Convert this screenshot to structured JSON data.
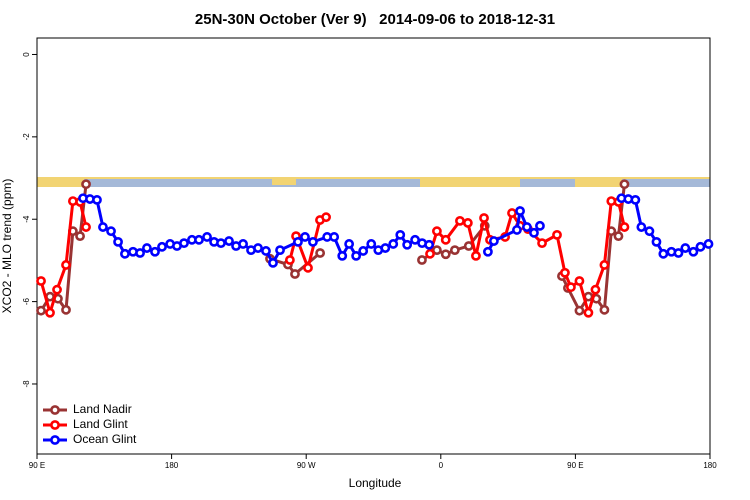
{
  "chart_data": {
    "type": "line",
    "title": "25N-30N October (Ver 9)   2014-09-06 to 2018-12-31",
    "x_label": "Longitude",
    "y_label": "XCO2 - MLO trend (ppm)",
    "xlim": [
      90,
      540
    ],
    "xticks": [
      {
        "value": 90,
        "label": "90 E"
      },
      180,
      {
        "value": 270,
        "label": "90 W"
      },
      {
        "value": 360,
        "label": "0"
      },
      {
        "value": 450,
        "label": "90 E"
      },
      {
        "value": 540,
        "label": "180"
      }
    ],
    "ylim": [
      -9.7,
      0.4
    ],
    "yticks": [
      0,
      -2,
      -4,
      -6,
      -8
    ],
    "legend": "bottom-left",
    "series": [
      {
        "name": "Land Nadir",
        "color": "#993333",
        "x": [
          92.7,
          98.7,
          104,
          109.4,
          114,
          118.8,
          122.8,
          245.8,
          257.8,
          262.5,
          279.3,
          347.4,
          357.4,
          363.3,
          369.4,
          378.7,
          389.4,
          441,
          445,
          452.7,
          458.7,
          464,
          469.4,
          474,
          478.8,
          482.8
        ],
        "values": [
          -6.22,
          -5.88,
          -5.93,
          -6.2,
          -4.29,
          -4.41,
          -3.15,
          -4.96,
          -5.1,
          -5.33,
          -4.82,
          -4.99,
          -4.75,
          -4.85,
          -4.75,
          -4.65,
          -4.16,
          -5.38,
          -5.67,
          -6.22,
          -5.88,
          -5.93,
          -6.2,
          -4.29,
          -4.41,
          -3.15
        ]
      },
      {
        "name": "Land Glint",
        "color": "#ff0000",
        "x": [
          92.7,
          98.7,
          103.4,
          109.4,
          114,
          118.8,
          122.8,
          259.1,
          263.2,
          271.2,
          279.2,
          283.3,
          352.8,
          357.4,
          363.3,
          372.8,
          378.1,
          383.5,
          388.9,
          392.9,
          403,
          407.6,
          413,
          418.3,
          427.7,
          437.7,
          443,
          447,
          452.7,
          458.7,
          463.4,
          469.4,
          474,
          478.8,
          482.8
        ],
        "values": [
          -5.5,
          -6.27,
          -5.71,
          -5.11,
          -3.56,
          -3.58,
          -4.19,
          -4.99,
          -4.41,
          -5.18,
          -4.02,
          -3.95,
          -4.84,
          -4.29,
          -4.5,
          -4.04,
          -4.09,
          -4.89,
          -3.97,
          -4.5,
          -4.43,
          -3.85,
          -4.16,
          -4.24,
          -4.58,
          -4.38,
          -5.3,
          -5.65,
          -5.5,
          -6.27,
          -5.71,
          -5.11,
          -3.56,
          -3.58,
          -4.19
        ]
      },
      {
        "name": "Ocean Glint",
        "color": "#0000ff",
        "x": [
          120.8,
          125.4,
          130.1,
          134.1,
          139.5,
          144.2,
          148.8,
          154.2,
          158.9,
          163.5,
          168.9,
          173.6,
          179,
          183.6,
          188.3,
          193.6,
          198.3,
          203.7,
          208.4,
          213,
          218.4,
          223.1,
          227.8,
          233.1,
          237.8,
          243.1,
          247.8,
          252.5,
          264.5,
          269.2,
          274.5,
          284,
          288.7,
          294.1,
          298.7,
          303.4,
          308.1,
          313.5,
          318.2,
          322.9,
          328.2,
          332.9,
          337.5,
          342.8,
          347.5,
          352.2,
          391.5,
          395.5,
          410.9,
          413,
          417.6,
          422.3,
          426.3,
          480.8,
          485.4,
          490.1,
          494.1,
          499.5,
          504.2,
          508.8,
          514.2,
          518.9,
          523.5,
          528.9,
          533.6,
          539
        ],
        "values": [
          -3.49,
          -3.51,
          -3.53,
          -4.19,
          -4.29,
          -4.55,
          -4.84,
          -4.79,
          -4.82,
          -4.7,
          -4.79,
          -4.67,
          -4.6,
          -4.65,
          -4.58,
          -4.5,
          -4.5,
          -4.43,
          -4.55,
          -4.58,
          -4.53,
          -4.65,
          -4.6,
          -4.75,
          -4.7,
          -4.77,
          -5.06,
          -4.75,
          -4.55,
          -4.43,
          -4.55,
          -4.43,
          -4.43,
          -4.89,
          -4.6,
          -4.89,
          -4.77,
          -4.6,
          -4.75,
          -4.7,
          -4.6,
          -4.38,
          -4.62,
          -4.5,
          -4.58,
          -4.62,
          -4.79,
          -4.53,
          -4.26,
          -3.8,
          -4.19,
          -4.33,
          -4.16,
          -3.49,
          -3.51,
          -3.53,
          -4.19,
          -4.29,
          -4.55,
          -4.84,
          -4.79,
          -4.82,
          -4.7,
          -4.79,
          -4.67,
          -4.6
        ]
      }
    ]
  }
}
